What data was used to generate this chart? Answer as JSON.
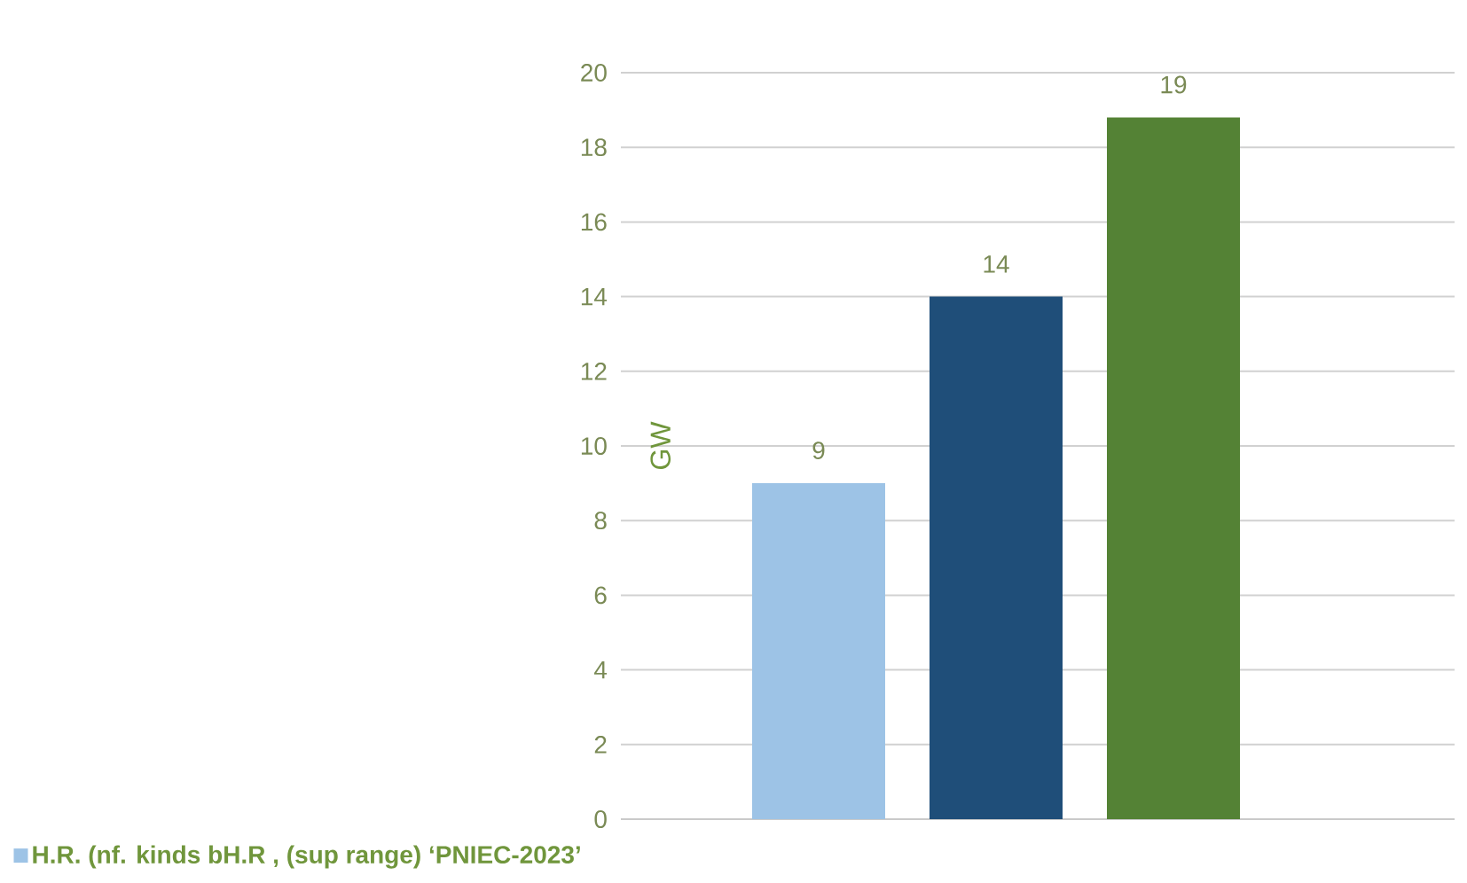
{
  "chart_data": {
    "type": "bar",
    "ylabel": "GW",
    "categories": [
      null
    ],
    "series": [
      {
        "name": "H.R. (nf. kinds bH.R , (sup range) ‘PNIEC-2023’",
        "color": "#9dc3e6",
        "values": [
          9
        ],
        "value_labels": [
          "9"
        ]
      },
      {
        "color": "#1f4e79",
        "values": [
          14
        ],
        "value_labels": [
          "14"
        ]
      },
      {
        "color": "#548235",
        "values": [
          18.8
        ],
        "value_labels": [
          "19"
        ]
      }
    ],
    "ylim": [
      0,
      20
    ],
    "yticks": [
      0,
      2,
      4,
      6,
      8,
      10,
      12,
      14,
      16,
      18,
      20
    ],
    "grid": "y",
    "legend": "bottom left"
  }
}
